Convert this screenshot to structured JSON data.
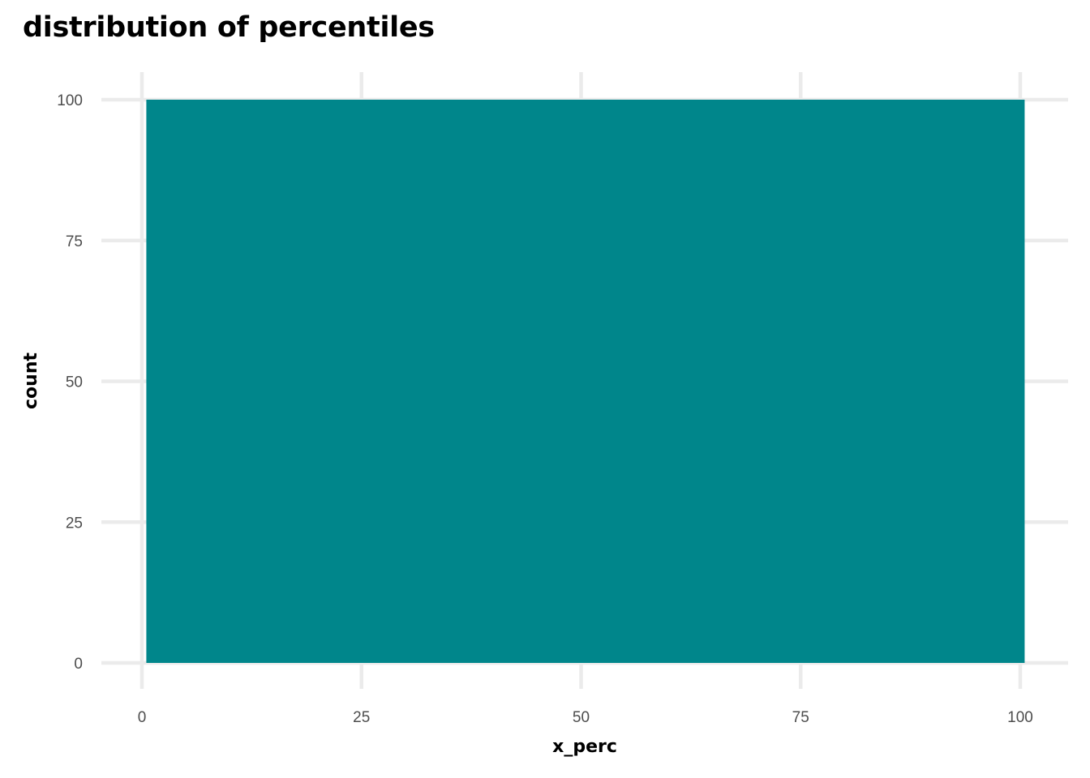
{
  "chart_data": {
    "type": "bar",
    "title": "distribution of percentiles",
    "xlabel": "x_perc",
    "ylabel": "count",
    "x_ticks": [
      "0",
      "25",
      "50",
      "75",
      "100"
    ],
    "y_ticks": [
      "0",
      "25",
      "50",
      "75",
      "100"
    ],
    "xlim": [
      0,
      100
    ],
    "ylim": [
      0,
      100
    ],
    "grid": true,
    "bars": [
      {
        "x_start": 0.5,
        "x_end": 100.5,
        "value": 100
      }
    ],
    "bar_color": "#00868b",
    "grid_color": "#ebebeb"
  }
}
